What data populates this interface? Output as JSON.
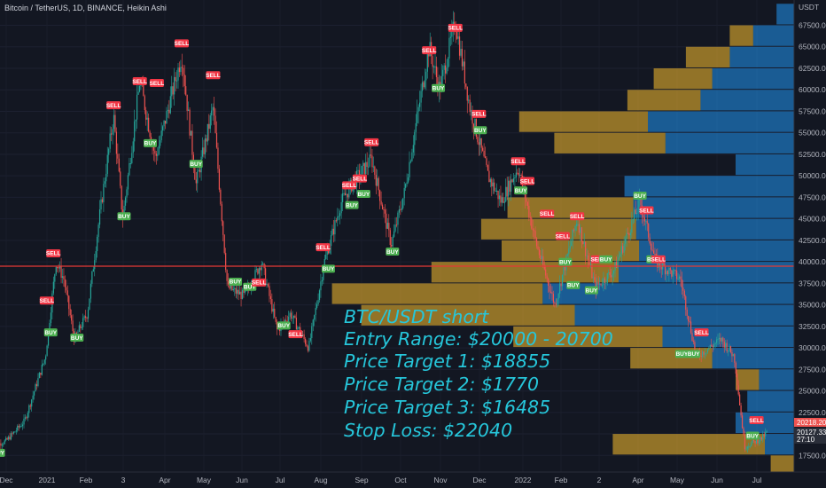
{
  "header": {
    "title": "Bitcoin / TetherUS, 1D, BINANCE, Heikin Ashi"
  },
  "axis": {
    "unit_label": "USDT",
    "y_ticks": [
      "67500.00",
      "65000.00",
      "62500.00",
      "60000.00",
      "57500.00",
      "55000.00",
      "52500.00",
      "50000.00",
      "47500.00",
      "45000.00",
      "42500.00",
      "40000.00",
      "37500.00",
      "35000.00",
      "32500.00",
      "30000.00",
      "27500.00",
      "25000.00",
      "22500.00",
      "20000.00",
      "17500.00"
    ],
    "x_ticks": [
      "Dec",
      "2021",
      "Feb",
      "3",
      "Apr",
      "May",
      "Jun",
      "Jul",
      "Aug",
      "Sep",
      "Oct",
      "Nov",
      "Dec",
      "2022",
      "Feb",
      "2",
      "Apr",
      "May",
      "Jun",
      "Jul"
    ],
    "price_tags": {
      "current_a": "20218.20",
      "current_b": "20127.33",
      "countdown": "27:10"
    }
  },
  "annotation": {
    "lines": [
      "BTC/USDT short",
      "Entry Range: $20000 - 20700",
      "Price Target 1: $18855",
      "Price Target 2: $1770",
      "Price Target 3: $16485",
      "Stop Loss: $22040"
    ]
  },
  "colors": {
    "background": "#131722",
    "up": "#26a69a",
    "down": "#ef5350",
    "horizontal_line": "#e53935",
    "annotation": "#26c6da",
    "vp_up": "#2196f3",
    "vp_down": "#fbc02d"
  },
  "chart_data": {
    "type": "candlestick",
    "ylim": [
      16000,
      69500
    ],
    "horizontal_line": 39500,
    "series_close": [
      {
        "x": "2020-11-20",
        "y": 18500
      },
      {
        "x": "2020-12-01",
        "y": 19200
      },
      {
        "x": "2020-12-15",
        "y": 21500
      },
      {
        "x": "2020-12-31",
        "y": 29000
      },
      {
        "x": "2021-01-08",
        "y": 40000
      },
      {
        "x": "2021-01-14",
        "y": 38000
      },
      {
        "x": "2021-01-22",
        "y": 31000
      },
      {
        "x": "2021-02-01",
        "y": 34000
      },
      {
        "x": "2021-02-10",
        "y": 45000
      },
      {
        "x": "2021-02-21",
        "y": 57000
      },
      {
        "x": "2021-02-28",
        "y": 45000
      },
      {
        "x": "2021-03-13",
        "y": 61000
      },
      {
        "x": "2021-03-25",
        "y": 52000
      },
      {
        "x": "2021-04-14",
        "y": 64000
      },
      {
        "x": "2021-04-25",
        "y": 49000
      },
      {
        "x": "2021-05-08",
        "y": 58000
      },
      {
        "x": "2021-05-19",
        "y": 37000
      },
      {
        "x": "2021-06-01",
        "y": 36000
      },
      {
        "x": "2021-06-14",
        "y": 40000
      },
      {
        "x": "2021-06-26",
        "y": 32000
      },
      {
        "x": "2021-07-06",
        "y": 34000
      },
      {
        "x": "2021-07-20",
        "y": 30000
      },
      {
        "x": "2021-08-01",
        "y": 40000
      },
      {
        "x": "2021-08-14",
        "y": 47000
      },
      {
        "x": "2021-08-22",
        "y": 49000
      },
      {
        "x": "2021-09-06",
        "y": 52000
      },
      {
        "x": "2021-09-21",
        "y": 42000
      },
      {
        "x": "2021-10-01",
        "y": 48000
      },
      {
        "x": "2021-10-20",
        "y": 65000
      },
      {
        "x": "2021-10-28",
        "y": 60000
      },
      {
        "x": "2021-11-09",
        "y": 68000
      },
      {
        "x": "2021-11-20",
        "y": 58000
      },
      {
        "x": "2021-12-04",
        "y": 50000
      },
      {
        "x": "2021-12-14",
        "y": 47000
      },
      {
        "x": "2021-12-27",
        "y": 51000
      },
      {
        "x": "2022-01-10",
        "y": 42000
      },
      {
        "x": "2022-01-24",
        "y": 35000
      },
      {
        "x": "2022-02-10",
        "y": 45000
      },
      {
        "x": "2022-02-24",
        "y": 37000
      },
      {
        "x": "2022-03-10",
        "y": 39000
      },
      {
        "x": "2022-03-30",
        "y": 47000
      },
      {
        "x": "2022-04-11",
        "y": 40000
      },
      {
        "x": "2022-04-30",
        "y": 38000
      },
      {
        "x": "2022-05-12",
        "y": 29000
      },
      {
        "x": "2022-05-31",
        "y": 31000
      },
      {
        "x": "2022-06-10",
        "y": 29000
      },
      {
        "x": "2022-06-18",
        "y": 18500
      },
      {
        "x": "2022-07-01",
        "y": 19500
      },
      {
        "x": "2022-07-05",
        "y": 20200
      }
    ],
    "signals": [
      {
        "label": "BUY",
        "x": "2020-11-25",
        "y": 17800
      },
      {
        "label": "SELL",
        "x": "2021-01-06",
        "y": 41000
      },
      {
        "label": "SELL",
        "x": "2021-01-01",
        "y": 35500
      },
      {
        "label": "BUY",
        "x": "2021-01-04",
        "y": 31800
      },
      {
        "label": "BUY",
        "x": "2021-01-24",
        "y": 31200
      },
      {
        "label": "SELL",
        "x": "2021-02-21",
        "y": 58200
      },
      {
        "label": "BUY",
        "x": "2021-03-01",
        "y": 45300
      },
      {
        "label": "SELL",
        "x": "2021-03-13",
        "y": 61000
      },
      {
        "label": "BUY",
        "x": "2021-03-21",
        "y": 53800
      },
      {
        "label": "SELL",
        "x": "2021-03-26",
        "y": 60800
      },
      {
        "label": "SELL",
        "x": "2021-04-14",
        "y": 65400
      },
      {
        "label": "BUY",
        "x": "2021-04-25",
        "y": 51400
      },
      {
        "label": "SELL",
        "x": "2021-05-08",
        "y": 61700
      },
      {
        "label": "BUY",
        "x": "2021-05-25",
        "y": 37700
      },
      {
        "label": "BUY",
        "x": "2021-06-05",
        "y": 37100
      },
      {
        "label": "SELL",
        "x": "2021-06-12",
        "y": 37600
      },
      {
        "label": "BUY",
        "x": "2021-07-01",
        "y": 32600
      },
      {
        "label": "SELL",
        "x": "2021-07-10",
        "y": 31600
      },
      {
        "label": "SELL",
        "x": "2021-07-31",
        "y": 41700
      },
      {
        "label": "BUY",
        "x": "2021-08-04",
        "y": 39200
      },
      {
        "label": "SELL",
        "x": "2021-08-20",
        "y": 48900
      },
      {
        "label": "BUY",
        "x": "2021-08-22",
        "y": 46600
      },
      {
        "label": "SELL",
        "x": "2021-08-28",
        "y": 49700
      },
      {
        "label": "BUY",
        "x": "2021-08-31",
        "y": 47900
      },
      {
        "label": "SELL",
        "x": "2021-09-06",
        "y": 53900
      },
      {
        "label": "BUY",
        "x": "2021-09-22",
        "y": 41200
      },
      {
        "label": "SELL",
        "x": "2021-10-20",
        "y": 64600
      },
      {
        "label": "BUY",
        "x": "2021-10-27",
        "y": 60200
      },
      {
        "label": "SELL",
        "x": "2021-11-09",
        "y": 67200
      },
      {
        "label": "SELL",
        "x": "2021-11-27",
        "y": 57200
      },
      {
        "label": "BUY",
        "x": "2021-11-28",
        "y": 55300
      },
      {
        "label": "SELL",
        "x": "2021-12-27",
        "y": 51700
      },
      {
        "label": "BUY",
        "x": "2021-12-29",
        "y": 48300
      },
      {
        "label": "SELL",
        "x": "2022-01-03",
        "y": 49400
      },
      {
        "label": "SELL",
        "x": "2022-01-18",
        "y": 45600
      },
      {
        "label": "SELL",
        "x": "2022-01-30",
        "y": 43000
      },
      {
        "label": "BUY",
        "x": "2022-02-01",
        "y": 40000
      },
      {
        "label": "BUY",
        "x": "2022-02-07",
        "y": 37300
      },
      {
        "label": "SELL",
        "x": "2022-02-10",
        "y": 45300
      },
      {
        "label": "BUY",
        "x": "2022-02-21",
        "y": 36700
      },
      {
        "label": "SELL",
        "x": "2022-02-26",
        "y": 40300
      },
      {
        "label": "BUY",
        "x": "2022-03-04",
        "y": 40300
      },
      {
        "label": "BUY",
        "x": "2022-03-30",
        "y": 47700
      },
      {
        "label": "SELL",
        "x": "2022-04-04",
        "y": 46000
      },
      {
        "label": "BUY",
        "x": "2022-04-09",
        "y": 40300
      },
      {
        "label": "SELL",
        "x": "2022-04-13",
        "y": 40300
      },
      {
        "label": "BUY",
        "x": "2022-05-01",
        "y": 29300
      },
      {
        "label": "BUY",
        "x": "2022-05-10",
        "y": 29300
      },
      {
        "label": "SELL",
        "x": "2022-05-16",
        "y": 31800
      },
      {
        "label": "SELL",
        "x": "2022-06-27",
        "y": 21600
      },
      {
        "label": "BUY",
        "x": "2022-06-24",
        "y": 19800
      }
    ],
    "volume_profile": [
      {
        "price": 68750,
        "buy": 0.06,
        "sell": 0.0
      },
      {
        "price": 66250,
        "buy": 0.14,
        "sell": 0.08
      },
      {
        "price": 63750,
        "buy": 0.22,
        "sell": 0.15
      },
      {
        "price": 61250,
        "buy": 0.28,
        "sell": 0.2
      },
      {
        "price": 58750,
        "buy": 0.32,
        "sell": 0.25
      },
      {
        "price": 56250,
        "buy": 0.5,
        "sell": 0.44
      },
      {
        "price": 53750,
        "buy": 0.44,
        "sell": 0.38
      },
      {
        "price": 51250,
        "buy": 0.2,
        "sell": 0.0
      },
      {
        "price": 48750,
        "buy": 0.58,
        "sell": 0.0
      },
      {
        "price": 46250,
        "buy": 0.55,
        "sell": 0.43
      },
      {
        "price": 43750,
        "buy": 0.54,
        "sell": 0.53
      },
      {
        "price": 41250,
        "buy": 0.53,
        "sell": 0.47
      },
      {
        "price": 38750,
        "buy": 0.6,
        "sell": 0.64
      },
      {
        "price": 36250,
        "buy": 0.86,
        "sell": 0.72
      },
      {
        "price": 33750,
        "buy": 0.75,
        "sell": 0.73
      },
      {
        "price": 31250,
        "buy": 0.45,
        "sell": 0.51
      },
      {
        "price": 28750,
        "buy": 0.28,
        "sell": 0.28
      },
      {
        "price": 26250,
        "buy": 0.12,
        "sell": 0.08
      },
      {
        "price": 23750,
        "buy": 0.16,
        "sell": 0.0
      },
      {
        "price": 21250,
        "buy": 0.2,
        "sell": 0.0
      },
      {
        "price": 18750,
        "buy": 0.1,
        "sell": 0.52
      },
      {
        "price": 16250,
        "buy": 0.0,
        "sell": 0.08
      }
    ]
  }
}
